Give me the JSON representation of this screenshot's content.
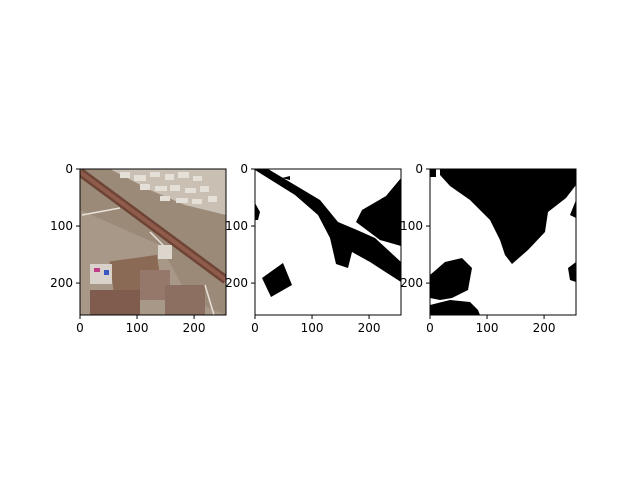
{
  "chart_data": [
    {
      "type": "image",
      "panel": "aerial-photo",
      "x_ticks": [
        "0",
        "100",
        "200"
      ],
      "y_ticks": [
        "0",
        "100",
        "200"
      ],
      "xlim": [
        0,
        256
      ],
      "ylim": [
        256,
        0
      ],
      "colors": {
        "soil": "#9b8a78",
        "field_light": "#b0a08f",
        "field_dark": "#8a6a55",
        "road": "#7a4a3e",
        "buildings": "#dcd6cc",
        "plot_dark": "#7f5c4d"
      }
    },
    {
      "type": "image",
      "panel": "binary-mask-1",
      "x_ticks": [
        "0",
        "100",
        "200"
      ],
      "y_ticks": [
        "0",
        "100",
        "200"
      ],
      "xlim": [
        0,
        256
      ],
      "ylim": [
        256,
        0
      ],
      "colors": {
        "foreground": "#ffffff",
        "background": "#000000"
      }
    },
    {
      "type": "image",
      "panel": "binary-mask-2",
      "x_ticks": [
        "0",
        "100",
        "200"
      ],
      "y_ticks": [
        "0",
        "100",
        "200"
      ],
      "xlim": [
        0,
        256
      ],
      "ylim": [
        256,
        0
      ],
      "colors": {
        "foreground": "#ffffff",
        "background": "#000000"
      }
    }
  ]
}
